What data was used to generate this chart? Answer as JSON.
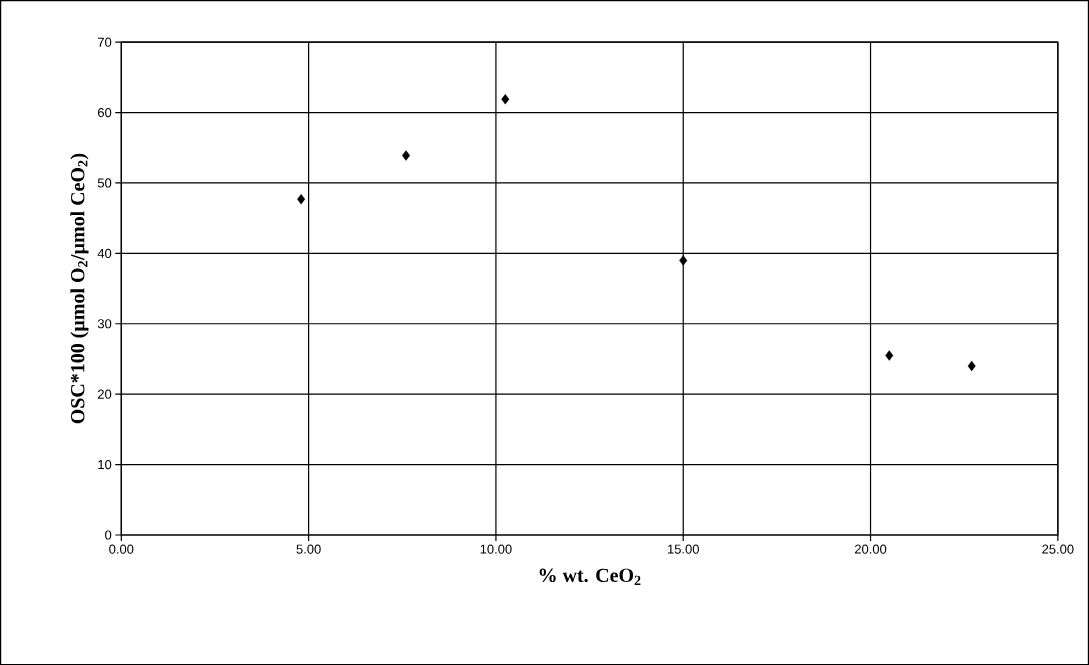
{
  "chart_data": {
    "type": "scatter",
    "xlabel": "% wt. CeO$_{2}$",
    "ylabel": "OSC*100 (µmol O$_{2}$/µmol CeO$_{2}$)",
    "x": [
      4.8,
      7.6,
      10.25,
      15.0,
      20.5,
      22.7
    ],
    "values": [
      47.7,
      53.9,
      61.9,
      39.0,
      25.5,
      24.0
    ],
    "color": "#000000",
    "marker": "diamond",
    "xlim": [
      0,
      25
    ],
    "ylim": [
      0,
      70
    ],
    "xticks": [
      {
        "value": 0,
        "label": "0.00"
      },
      {
        "value": 5,
        "label": "5.00"
      },
      {
        "value": 10,
        "label": "10.00"
      },
      {
        "value": 15,
        "label": "15.00"
      },
      {
        "value": 20,
        "label": "20.00"
      },
      {
        "value": 25,
        "label": "25.00"
      }
    ],
    "yticks": [
      0,
      10,
      20,
      30,
      40,
      50,
      60,
      70
    ],
    "grid": true
  }
}
